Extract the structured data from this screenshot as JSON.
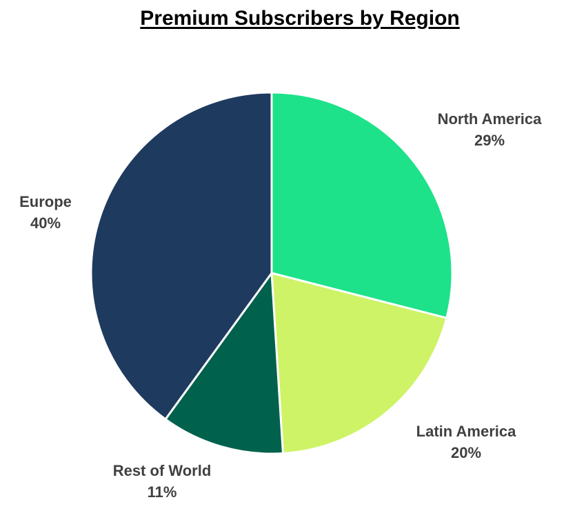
{
  "chart_data": {
    "type": "pie",
    "title": "Premium Subscribers by Region",
    "slices": [
      {
        "label": "North America",
        "value": 29,
        "value_label": "29%",
        "color": "#1de28a"
      },
      {
        "label": "Latin America",
        "value": 20,
        "value_label": "20%",
        "color": "#cef366"
      },
      {
        "label": "Rest of World",
        "value": 11,
        "value_label": "11%",
        "color": "#00614c"
      },
      {
        "label": "Europe",
        "value": 40,
        "value_label": "40%",
        "color": "#1f3a5f"
      }
    ],
    "start_angle_deg": 0,
    "direction": "clockwise",
    "slice_border_color": "#ffffff",
    "label_color": "#404040",
    "legend": "none"
  }
}
